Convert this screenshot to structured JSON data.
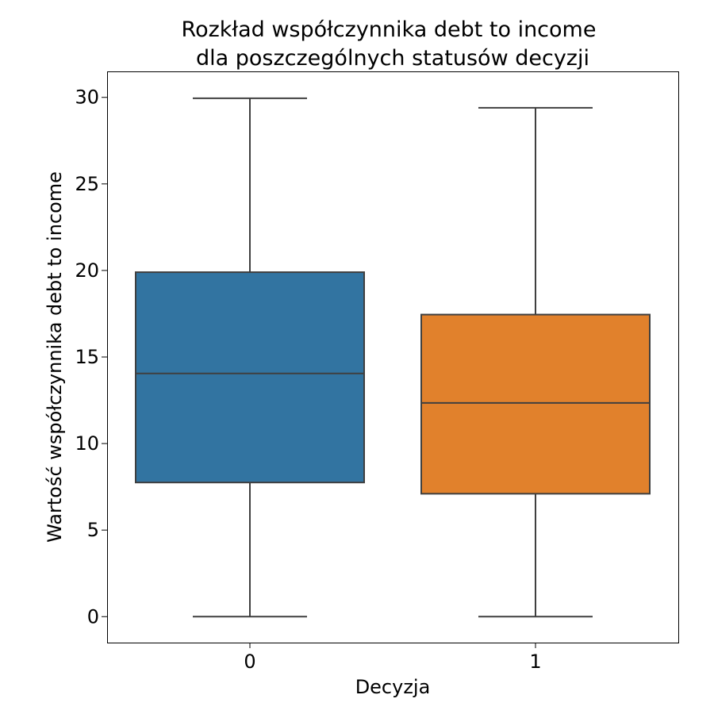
{
  "chart_data": {
    "type": "box",
    "title_lines": [
      "Rozkład współczynnika debt to income",
      "dla poszczególnych statusów decyzji"
    ],
    "xlabel": "Decyzja",
    "ylabel": "Wartość współczynnika debt to income",
    "categories": [
      "0",
      "1"
    ],
    "yticks": [
      0,
      5,
      10,
      15,
      20,
      25,
      30
    ],
    "ylim": [
      -1.5,
      31.5
    ],
    "grid": false,
    "legend": "none",
    "boxes": [
      {
        "category": "0",
        "whisker_low": 0,
        "q1": 7.75,
        "median": 14.05,
        "q3": 19.9,
        "whisker_high": 29.95,
        "color": "#3274a1"
      },
      {
        "category": "1",
        "whisker_low": 0,
        "q1": 7.1,
        "median": 12.35,
        "q3": 17.45,
        "whisker_high": 29.4,
        "color": "#e1812c"
      }
    ]
  }
}
